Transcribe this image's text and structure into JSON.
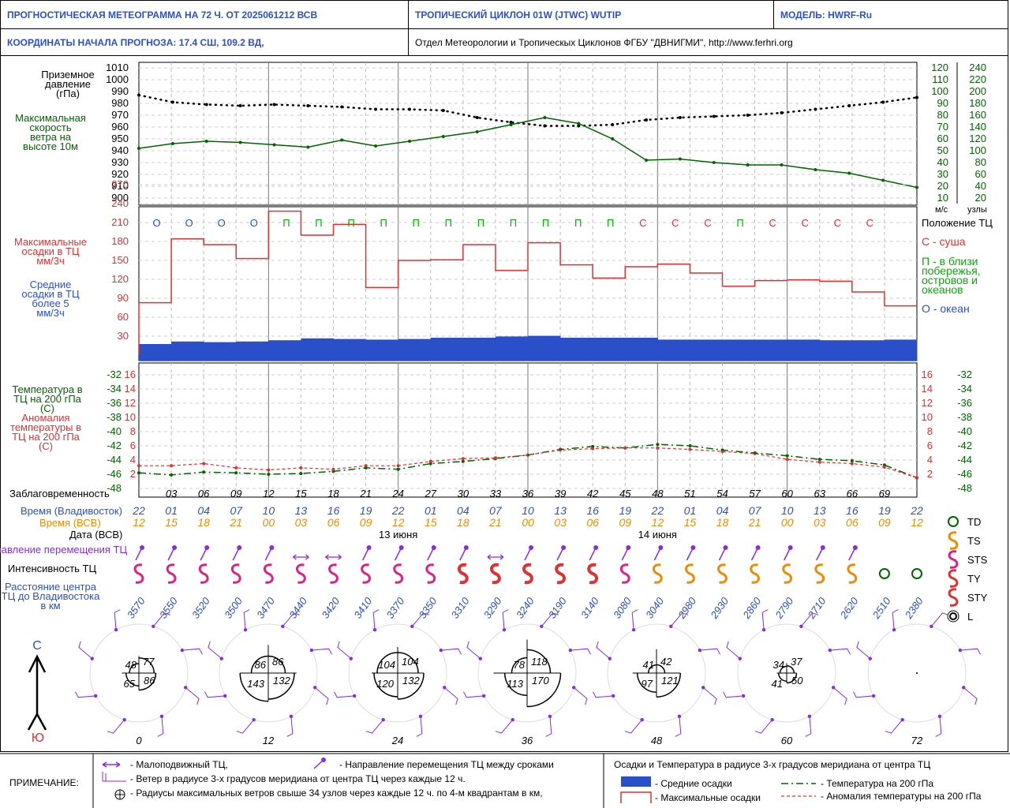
{
  "header": {
    "title": "ПРОГНОСТИЧЕСКАЯ МЕТЕОГРАММА НА 72 Ч. ОТ 2025061212 ВСВ",
    "cyclone": "ТРОПИЧЕСКИЙ ЦИКЛОН  01W  (JTWC)  WUTIP",
    "model": "МОДЕЛЬ:   HWRF-Ru",
    "coords": "КООРДИНАТЫ НАЧАЛА ПРОГНОЗА:  17.4  СШ,   109.2  ВД,",
    "org": "Отдел Метеорологии и Тропическых Циклонов ФГБУ \"ДВНИГМИ\",  http://www.ferhri.org"
  },
  "colors": {
    "blue": "#2b4fc9",
    "green": "#006400",
    "red": "#e03030",
    "orange": "#f08a00",
    "purple": "#8a2be2",
    "magenta": "#e0208a"
  },
  "panels": {
    "pressure_label": "Приземное давление (гПа)",
    "wind_label": "Максимальная скорость ветра на высоте 10м",
    "wind_units_ms": "м/с",
    "wind_units_kt": "узлы",
    "precip_max_label": "Максимальные осадки в ТЦ мм/3ч",
    "precip_avg_label": "Средние осадки в ТЦ более 5 мм/3ч",
    "position_title": "Положение ТЦ",
    "position_land": "С - суша",
    "position_coast": "П - в близи побережья, островов и океанов",
    "position_ocean": "О - океан",
    "temp_label": "Температура в ТЦ на 200 гПа (С)",
    "anom_label": "Аномалия температуры в ТЦ на 200 гПа (С)",
    "lead_label": "Заблаговременность",
    "time_vlad_label": "Время (Владивосток)",
    "time_utc_label": "Время (ВСВ)",
    "date_label": "Дата (ВСВ)",
    "direction_label": "Направление перемещения ТЦ",
    "intensity_label": "Интенсивность ТЦ",
    "distance_label": "Расстояние центра ТЦ до Владивостока в км",
    "north": "С",
    "south": "Ю"
  },
  "chart_data": {
    "type": "line",
    "lead_hours": [
      "03",
      "06",
      "09",
      "12",
      "15",
      "18",
      "21",
      "24",
      "27",
      "30",
      "33",
      "36",
      "39",
      "42",
      "45",
      "48",
      "51",
      "54",
      "57",
      "60",
      "63",
      "66",
      "69"
    ],
    "time_vlad": [
      "22",
      "01",
      "04",
      "07",
      "10",
      "13",
      "16",
      "19",
      "22",
      "01",
      "04",
      "07",
      "10",
      "13",
      "16",
      "19",
      "22",
      "01",
      "04",
      "07",
      "10",
      "13",
      "16",
      "19",
      "22"
    ],
    "time_utc": [
      "12",
      "15",
      "18",
      "21",
      "00",
      "03",
      "06",
      "09",
      "12",
      "15",
      "18",
      "21",
      "00",
      "03",
      "06",
      "09",
      "12",
      "15",
      "18",
      "21",
      "00",
      "03",
      "06",
      "09",
      "12"
    ],
    "dates": [
      "13 июня",
      "14 июня"
    ],
    "pressure_ticks": [
      "1010",
      "1000",
      "990",
      "980",
      "970",
      "960",
      "950",
      "940",
      "930",
      "920",
      "910",
      "900"
    ],
    "pressure_hpa": [
      987,
      981,
      979,
      978,
      979,
      978,
      977,
      975,
      975,
      974,
      968,
      964,
      961,
      961,
      962,
      966,
      968,
      969,
      970,
      972,
      975,
      978,
      981,
      985
    ],
    "wind_ms_ticks": [
      "120",
      "110",
      "100",
      "90",
      "80",
      "70",
      "60",
      "50",
      "40",
      "30",
      "20",
      "10"
    ],
    "wind_kt_ticks": [
      "240",
      "220",
      "200",
      "180",
      "160",
      "140",
      "120",
      "100",
      "80",
      "60",
      "40",
      "20"
    ],
    "wind_ms": [
      52,
      56,
      58,
      57,
      55,
      53,
      59,
      54,
      58,
      62,
      66,
      72,
      78,
      73,
      60,
      42,
      43,
      40,
      38,
      38,
      34,
      31,
      25,
      19
    ],
    "precip_ticks": [
      "270",
      "240",
      "210",
      "180",
      "150",
      "120",
      "90",
      "60",
      "30"
    ],
    "precip_max": [
      83,
      184,
      175,
      153,
      228,
      190,
      207,
      107,
      150,
      151,
      175,
      134,
      178,
      143,
      122,
      140,
      144,
      130,
      109,
      118,
      119,
      117,
      100,
      78
    ],
    "precip_avg": [
      10,
      14,
      13,
      14,
      16,
      19,
      18,
      17,
      18,
      20,
      20,
      22,
      23,
      20,
      20,
      20,
      17,
      17,
      17,
      17,
      17,
      16,
      16,
      17
    ],
    "position": [
      "О",
      "О",
      "О",
      "О",
      "П",
      "П",
      "П",
      "П",
      "П",
      "П",
      "П",
      "П",
      "П",
      "П",
      "П",
      "С",
      "С",
      "С",
      "П",
      "С",
      "С",
      "С",
      "С"
    ],
    "temp_ticks": [
      "-32",
      "-34",
      "-36",
      "-38",
      "-40",
      "-42",
      "-44",
      "-46",
      "-48"
    ],
    "anom_ticks": [
      "16",
      "14",
      "12",
      "10",
      "8",
      "6",
      "4",
      "2"
    ],
    "temp_200": [
      -45.8,
      -46.1,
      -45.7,
      -45.8,
      -46.0,
      -45.9,
      -45.6,
      -45.1,
      -45.3,
      -44.5,
      -44.2,
      -43.8,
      -43.3,
      -42.5,
      -42.1,
      -42.3,
      -41.8,
      -42.0,
      -42.6,
      -43.0,
      -43.4,
      -43.9,
      -44.1,
      -44.7,
      -46.5
    ],
    "anom_200": [
      3.2,
      3.2,
      3.5,
      2.9,
      2.6,
      2.9,
      2.7,
      3.2,
      3.2,
      3.8,
      4.2,
      4.3,
      4.7,
      5.4,
      5.6,
      5.7,
      5.7,
      5.5,
      5.2,
      4.9,
      4.1,
      3.7,
      3.5,
      3.0,
      1.5
    ],
    "intensity": [
      "STS",
      "STS",
      "STS",
      "STS",
      "STS",
      "STS",
      "STS",
      "STS",
      "STS",
      "STS",
      "TY",
      "TY",
      "TY",
      "TY",
      "TY",
      "STS",
      "TS",
      "TS",
      "TS",
      "TS",
      "TS",
      "TS",
      "TS",
      "TD",
      "TD"
    ],
    "distance_km": [
      "3570",
      "3550",
      "3520",
      "3500",
      "3470",
      "3440",
      "3420",
      "3410",
      "3370",
      "3350",
      "3310",
      "3290",
      "3240",
      "3190",
      "3140",
      "3080",
      "3040",
      "2980",
      "2930",
      "2860",
      "2790",
      "2710",
      "2620",
      "2510",
      "2380"
    ],
    "wind_radii": [
      {
        "lead": "0",
        "nw": "48",
        "ne": "77",
        "sw": "65",
        "se": "86"
      },
      {
        "lead": "12",
        "nw": "86",
        "ne": "86",
        "sw": "143",
        "se": "132"
      },
      {
        "lead": "24",
        "nw": "104",
        "ne": "104",
        "sw": "120",
        "se": "132"
      },
      {
        "lead": "36",
        "nw": "78",
        "ne": "118",
        "sw": "113",
        "se": "170"
      },
      {
        "lead": "48",
        "nw": "41",
        "ne": "42",
        "sw": "97",
        "se": "121"
      },
      {
        "lead": "60",
        "nw": "34",
        "ne": "37",
        "sw": "41",
        "se": "50"
      },
      {
        "lead": "72",
        "nw": "",
        "ne": "",
        "sw": "",
        "se": ""
      }
    ]
  },
  "legend": {
    "intensity_items": [
      "TD",
      "TS",
      "STS",
      "TY",
      "STY",
      "L"
    ],
    "note_title": "ПРИМЕЧАНИЕ:",
    "note_stationary": "- Малоподвижный ТЦ,",
    "note_direction": "- Направление перемещения ТЦ между сроками",
    "note_wind": "- Ветер в радиусе 3-х градусов меридиана от центра ТЦ через каждые 12 ч.",
    "note_radii": "- Радиусы максимальных ветров свыше 34 узлов через каждые 12 ч. по 4-м квадрантам в км,",
    "precip_temp_title": "Осадки и Температура в радиусе 3-х градусов меридиана от центра ТЦ",
    "avg_precip": "- Средние осадки",
    "max_precip": "- Максимальные осадки",
    "temp": "- Температура на 200 гПа",
    "anom": "- Аномалия температуры на 200 гПа"
  }
}
